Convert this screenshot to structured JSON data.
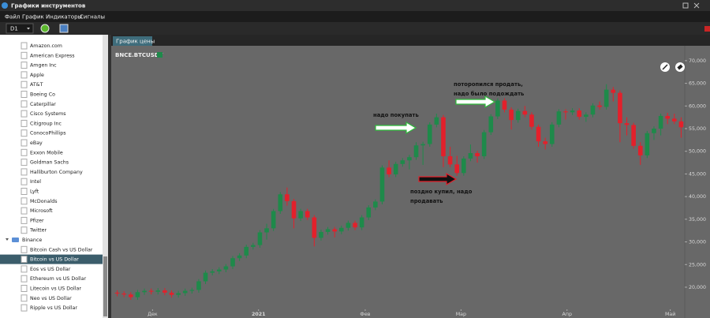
{
  "window": {
    "title": "Графики инструментов",
    "menu": [
      "Файл",
      "График",
      "Индикаторы",
      "Сигналы"
    ],
    "timeframe": "D1"
  },
  "sidebar": {
    "items": [
      "Amazon.com",
      "American Express",
      "Amgen Inc",
      "Apple",
      "AT&T",
      "Boeing Co",
      "Caterpillar",
      "Cisco Systems",
      "Citigroup Inc",
      "ConocoPhillips",
      "eBay",
      "Exxon Mobile",
      "Goldman Sachs",
      "Halliburton Company",
      "Intel",
      "Lyft",
      "McDonalds",
      "Microsoft",
      "Pfizer",
      "Twitter"
    ],
    "group": {
      "name": "Binance",
      "items": [
        "Bitcoin Cash vs US Dollar",
        "Bitcoin vs US Dollar",
        "Eos vs US Dollar",
        "Ethereum vs US Dollar",
        "Litecoin vs US Dollar",
        "Neo vs US Dollar",
        "Ripple vs US Dollar"
      ],
      "selected": 1
    }
  },
  "tab": "График цены",
  "chart_data": {
    "type": "candlestick",
    "symbol": "BNCE.BTCUSDT",
    "up_color": "#1e8a4a",
    "down_color": "#e3202b",
    "ylim": [
      13550,
      71200
    ],
    "yticks": [
      {
        "value": 20000,
        "label": "20,000"
      },
      {
        "value": 25000,
        "label": "25,000"
      },
      {
        "value": 30000,
        "label": "30,000"
      },
      {
        "value": 35000,
        "label": "35,000"
      },
      {
        "value": 40000,
        "label": "40,000"
      },
      {
        "value": 45000,
        "label": "45,000"
      },
      {
        "value": 50000,
        "label": "50,000"
      },
      {
        "value": 55000,
        "label": "55,000"
      },
      {
        "value": 60000,
        "label": "60,000"
      },
      {
        "value": 65000,
        "label": "65,000"
      },
      {
        "value": 70000,
        "label": "70,000"
      }
    ],
    "xlim": [
      -0.3,
      83.3
    ],
    "xticks": [
      {
        "value": 5.2,
        "label": "Дек"
      },
      {
        "value": 20.8,
        "label": "2021"
      },
      {
        "value": 36.5,
        "label": "Фев"
      },
      {
        "value": 50.6,
        "label": "Мар"
      },
      {
        "value": 66.2,
        "label": "Апр"
      },
      {
        "value": 81.4,
        "label": "Май"
      }
    ],
    "candles": [
      [
        18800,
        19300,
        18000,
        18600
      ],
      [
        18600,
        19100,
        17800,
        18400
      ],
      [
        18400,
        18900,
        17200,
        17800
      ],
      [
        17800,
        19400,
        17200,
        18900
      ],
      [
        18900,
        19700,
        18300,
        19200
      ],
      [
        19200,
        19700,
        18400,
        19000
      ],
      [
        19000,
        19800,
        18400,
        19300
      ],
      [
        19300,
        19800,
        18200,
        18800
      ],
      [
        18800,
        19300,
        17700,
        18300
      ],
      [
        18300,
        19200,
        17700,
        18700
      ],
      [
        18700,
        19700,
        18100,
        19200
      ],
      [
        19200,
        19900,
        18600,
        19400
      ],
      [
        19400,
        21800,
        18800,
        21300
      ],
      [
        21300,
        23700,
        20700,
        23200
      ],
      [
        23200,
        24000,
        22600,
        23500
      ],
      [
        23500,
        24400,
        22900,
        23900
      ],
      [
        23900,
        25100,
        23300,
        24600
      ],
      [
        24600,
        26900,
        24000,
        26400
      ],
      [
        26400,
        27500,
        25800,
        27000
      ],
      [
        27000,
        29400,
        26400,
        28900
      ],
      [
        28900,
        29800,
        28300,
        29300
      ],
      [
        29300,
        32600,
        28700,
        32100
      ],
      [
        32100,
        34000,
        30500,
        33000
      ],
      [
        33000,
        37300,
        32400,
        36800
      ],
      [
        36800,
        41000,
        36200,
        40500
      ],
      [
        40500,
        42000,
        38000,
        39000
      ],
      [
        39000,
        39500,
        33000,
        35200
      ],
      [
        35200,
        37300,
        34600,
        36800
      ],
      [
        36800,
        37300,
        34800,
        35400
      ],
      [
        35400,
        35900,
        29000,
        30900
      ],
      [
        30900,
        32700,
        30300,
        32200
      ],
      [
        32200,
        33300,
        31600,
        32800
      ],
      [
        32800,
        33300,
        31000,
        32300
      ],
      [
        32300,
        33600,
        31700,
        33100
      ],
      [
        33100,
        34700,
        32500,
        34200
      ],
      [
        34200,
        34700,
        32600,
        33200
      ],
      [
        33200,
        35900,
        32600,
        35400
      ],
      [
        35400,
        38100,
        34800,
        37600
      ],
      [
        37600,
        39400,
        37000,
        38900
      ],
      [
        38900,
        46900,
        38300,
        46400
      ],
      [
        46400,
        48000,
        44300,
        44900
      ],
      [
        44900,
        47700,
        44300,
        47200
      ],
      [
        47200,
        48500,
        46600,
        48000
      ],
      [
        48000,
        49200,
        46000,
        48700
      ],
      [
        48700,
        52000,
        48100,
        51300
      ],
      [
        51300,
        52100,
        47000,
        51600
      ],
      [
        51600,
        56400,
        51000,
        55900
      ],
      [
        55900,
        58300,
        55300,
        57500
      ],
      [
        57500,
        58000,
        46500,
        48900
      ],
      [
        48900,
        51000,
        46500,
        47100
      ],
      [
        47100,
        49000,
        44600,
        45200
      ],
      [
        45200,
        48900,
        44600,
        48400
      ],
      [
        48400,
        51500,
        47800,
        49600
      ],
      [
        49600,
        50100,
        47500,
        48900
      ],
      [
        48900,
        54700,
        48300,
        54200
      ],
      [
        54200,
        58200,
        53600,
        57700
      ],
      [
        57700,
        61700,
        57100,
        61200
      ],
      [
        61200,
        61700,
        58600,
        59200
      ],
      [
        59200,
        59700,
        54800,
        56900
      ],
      [
        56900,
        59400,
        56300,
        58900
      ],
      [
        58900,
        60000,
        57500,
        58100
      ],
      [
        58100,
        58600,
        54800,
        55400
      ],
      [
        55400,
        55900,
        51000,
        52200
      ],
      [
        52200,
        53000,
        50400,
        51600
      ],
      [
        51600,
        56400,
        51000,
        55900
      ],
      [
        55900,
        59300,
        55300,
        58800
      ],
      [
        58800,
        59300,
        57000,
        58600
      ],
      [
        58600,
        59500,
        58000,
        59000
      ],
      [
        59000,
        59500,
        57000,
        57600
      ],
      [
        57600,
        58600,
        56500,
        58100
      ],
      [
        58100,
        60600,
        57500,
        60100
      ],
      [
        60100,
        61000,
        59200,
        59800
      ],
      [
        59800,
        64800,
        59200,
        63600
      ],
      [
        63600,
        64200,
        61000,
        62900
      ],
      [
        62900,
        63400,
        52000,
        56200
      ],
      [
        56200,
        57500,
        53500,
        55800
      ],
      [
        55800,
        56300,
        50600,
        51200
      ],
      [
        51200,
        52000,
        47000,
        49100
      ],
      [
        49100,
        54500,
        48500,
        54000
      ],
      [
        54000,
        55500,
        52500,
        55000
      ],
      [
        55000,
        58300,
        53500,
        57800
      ],
      [
        57800,
        58500,
        56000,
        57200
      ],
      [
        57200,
        58300,
        56000,
        56600
      ],
      [
        56600,
        57500,
        53000,
        55300
      ]
    ],
    "annotations": [
      {
        "lines": [
          "надо покупать"
        ]
      },
      {
        "lines": [
          "поторопился продать,",
          "надо было подождать"
        ]
      },
      {
        "lines": [
          "поздно купил, надо",
          "продавать"
        ]
      }
    ]
  }
}
